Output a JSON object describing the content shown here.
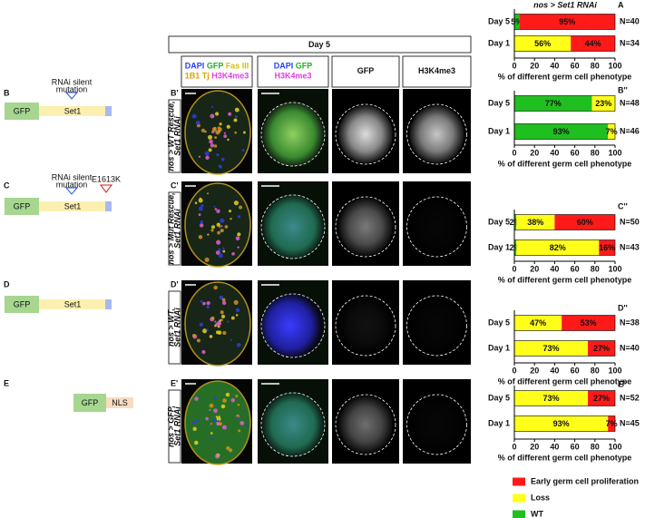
{
  "figure": {
    "column_header": "Day 5",
    "channel_headers": [
      {
        "lines": [
          [
            {
              "text": "DAPI",
              "color": "#2340ff"
            },
            {
              "text": "GFP",
              "color": "#1fb31f"
            },
            {
              "text": "Fas III",
              "color": "#d9c200"
            }
          ],
          [
            {
              "text": "1B1 Tj",
              "color": "#d9a400"
            },
            {
              "text": "H3K4me3",
              "color": "#e040e0"
            }
          ]
        ]
      },
      {
        "lines": [
          [
            {
              "text": "DAPI",
              "color": "#2340ff"
            },
            {
              "text": "GFP",
              "color": "#1fb31f"
            }
          ],
          [
            {
              "text": "H3K4me3",
              "color": "#e040e0"
            }
          ]
        ]
      },
      {
        "lines": [
          [
            {
              "text": "GFP",
              "color": "#111111"
            }
          ]
        ]
      },
      {
        "lines": [
          [
            {
              "text": "H3K4me3",
              "color": "#111111"
            }
          ]
        ]
      }
    ],
    "rows": [
      {
        "panel": "B",
        "image_panel": "B'",
        "label": [
          "nos > WT Rescue,",
          "Set1 RNAi"
        ],
        "gfp": "GFP",
        "rnai": [
          "RNAi silent",
          "mutation"
        ],
        "gene": "Set1"
      },
      {
        "panel": "C",
        "image_panel": "C'",
        "label": [
          "nos > Mut Rescue,",
          "Set1 RNAi"
        ],
        "gfp": "GFP",
        "rnai": [
          "RNAi silent",
          "mutation"
        ],
        "gene": "Set1",
        "mutation": "E1613K"
      },
      {
        "panel": "D",
        "image_panel": "D'",
        "label": [
          "nos > WT,",
          "Set1 RNAi"
        ],
        "gfp": "GFP",
        "gene": "Set1"
      },
      {
        "panel": "E",
        "image_panel": "E'",
        "label": [
          "nos > GFP,",
          "Set1 RNAi"
        ],
        "gfp": "GFP",
        "nls": "NLS"
      }
    ]
  },
  "chart_data": [
    {
      "type": "stacked-barh",
      "panel": "A",
      "title": "nos > Set1 RNAi",
      "categories": [
        "Day 5",
        "Day 1"
      ],
      "n_labels": [
        "N=40",
        "N=34"
      ],
      "series": [
        {
          "name": "WT",
          "color": "#1fbf1f",
          "values": [
            5,
            0
          ],
          "value_labels": [
            "5%",
            null
          ]
        },
        {
          "name": "Loss",
          "color": "#ffff1a",
          "values": [
            0,
            56
          ],
          "value_labels": [
            null,
            "56%"
          ]
        },
        {
          "name": "Early germ cell proliferation",
          "color": "#ff1a1a",
          "values": [
            95,
            44
          ],
          "value_labels": [
            "95%",
            "44%"
          ]
        }
      ],
      "xlim": [
        0,
        100
      ],
      "xticks": [
        0,
        20,
        40,
        60,
        80,
        100
      ],
      "xlabel": "% of different germ cell phenotype"
    },
    {
      "type": "stacked-barh",
      "panel": "B''",
      "categories": [
        "Day 5",
        "Day 1"
      ],
      "n_labels": [
        "N=48",
        "N=46"
      ],
      "series": [
        {
          "color": "#1fbf1f",
          "values": [
            77,
            93
          ],
          "value_labels": [
            "77%",
            "93%"
          ]
        },
        {
          "color": "#ffff1a",
          "values": [
            23,
            7
          ],
          "value_labels": [
            "23%",
            "7%"
          ]
        },
        {
          "color": "#ff1a1a",
          "values": [
            0,
            0
          ],
          "value_labels": [
            null,
            null
          ]
        }
      ],
      "xlim": [
        0,
        100
      ],
      "xticks": [
        0,
        20,
        40,
        60,
        80,
        100
      ],
      "xlabel": "% of different germ cell phenotype"
    },
    {
      "type": "stacked-barh",
      "panel": "C''",
      "categories": [
        "Day 5",
        "Day 1"
      ],
      "n_labels": [
        "N=50",
        "N=43"
      ],
      "series": [
        {
          "color": "#1fbf1f",
          "values": [
            2,
            2
          ],
          "value_labels": [
            "2%",
            "2%"
          ]
        },
        {
          "color": "#ffff1a",
          "values": [
            38,
            82
          ],
          "value_labels": [
            "38%",
            "82%"
          ]
        },
        {
          "color": "#ff1a1a",
          "values": [
            60,
            16
          ],
          "value_labels": [
            "60%",
            "16%"
          ]
        }
      ],
      "xlim": [
        0,
        100
      ],
      "xticks": [
        0,
        20,
        40,
        60,
        80,
        100
      ],
      "xlabel": "% of different germ cell phenotype"
    },
    {
      "type": "stacked-barh",
      "panel": "D''",
      "categories": [
        "Day 5",
        "Day 1"
      ],
      "n_labels": [
        "N=38",
        "N=40"
      ],
      "series": [
        {
          "color": "#1fbf1f",
          "values": [
            0,
            0
          ],
          "value_labels": [
            null,
            null
          ]
        },
        {
          "color": "#ffff1a",
          "values": [
            47,
            73
          ],
          "value_labels": [
            "47%",
            "73%"
          ]
        },
        {
          "color": "#ff1a1a",
          "values": [
            53,
            27
          ],
          "value_labels": [
            "53%",
            "27%"
          ]
        }
      ],
      "xlim": [
        0,
        100
      ],
      "xticks": [
        0,
        20,
        40,
        60,
        80,
        100
      ],
      "xlabel": "% of different germ cell phenotype"
    },
    {
      "type": "stacked-barh",
      "panel": "E''",
      "categories": [
        "Day 5",
        "Day 1"
      ],
      "n_labels": [
        "N=52",
        "N=45"
      ],
      "series": [
        {
          "color": "#1fbf1f",
          "values": [
            0,
            0
          ],
          "value_labels": [
            null,
            null
          ]
        },
        {
          "color": "#ffff1a",
          "values": [
            73,
            93
          ],
          "value_labels": [
            "73%",
            "93%"
          ]
        },
        {
          "color": "#ff1a1a",
          "values": [
            27,
            7
          ],
          "value_labels": [
            "27%",
            "7%"
          ]
        }
      ],
      "xlim": [
        0,
        100
      ],
      "xticks": [
        0,
        20,
        40,
        60,
        80,
        100
      ],
      "xlabel": "% of different germ cell phenotype"
    }
  ]
}
